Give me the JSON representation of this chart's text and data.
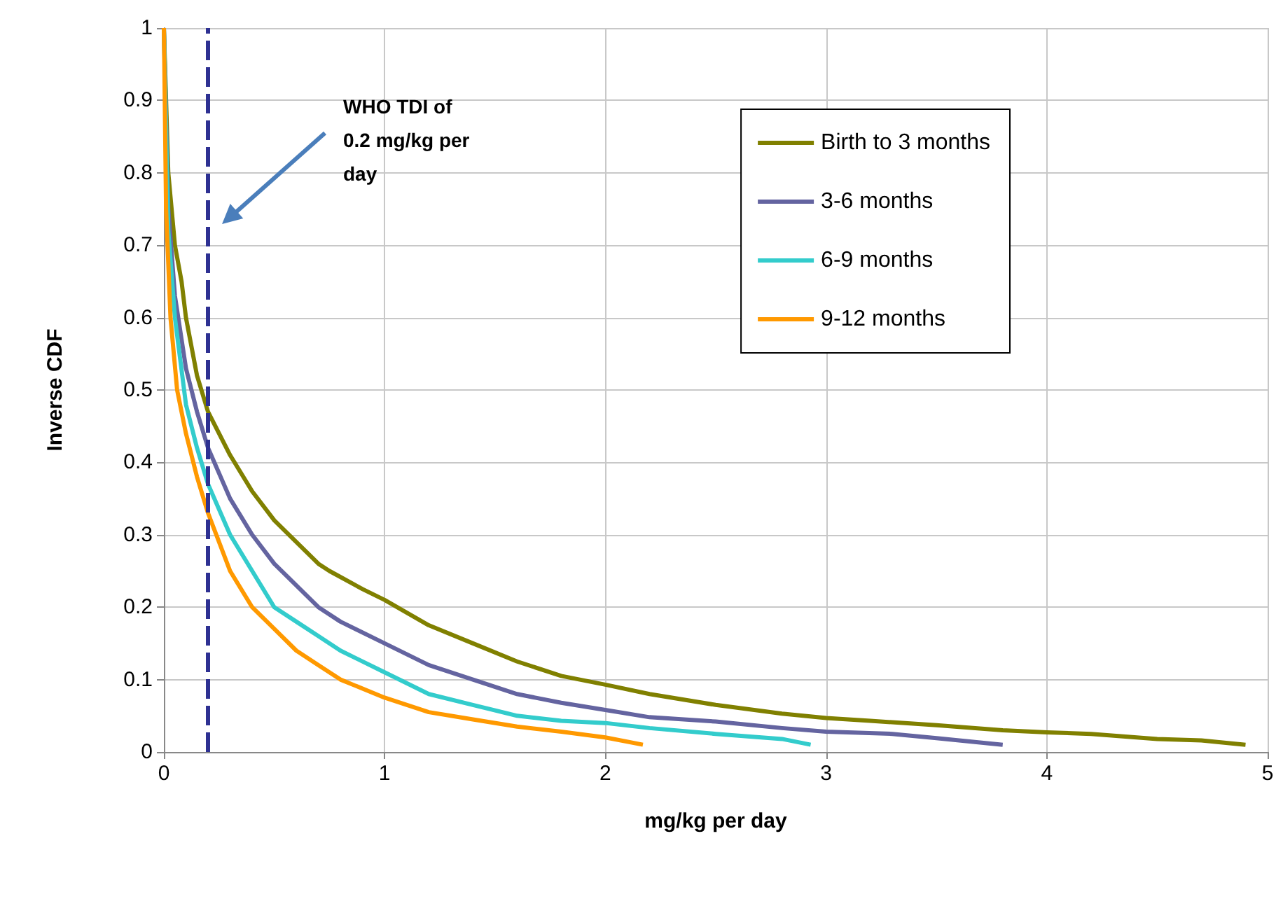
{
  "chart_data": {
    "type": "line",
    "xlabel": "mg/kg per day",
    "ylabel": "Inverse CDF",
    "xlim": [
      0,
      5
    ],
    "xticks": [
      0,
      1,
      2,
      3,
      4,
      5
    ],
    "ylim": [
      0,
      1
    ],
    "yticks": [
      0,
      0.1,
      0.2,
      0.3,
      0.4,
      0.5,
      0.6,
      0.7,
      0.8,
      0.9,
      1
    ],
    "grid": true,
    "legend": "top right",
    "marker": "none",
    "line_style": "solid",
    "series": [
      {
        "name": "Birth to 3 months",
        "color": "#808000",
        "x": [
          0,
          0.02,
          0.05,
          0.08,
          0.1,
          0.15,
          0.2,
          0.3,
          0.4,
          0.5,
          0.6,
          0.7,
          0.75,
          0.9,
          1.0,
          1.2,
          1.4,
          1.6,
          1.8,
          2.0,
          2.2,
          2.5,
          2.8,
          3.0,
          3.2,
          3.5,
          3.8,
          4.0,
          4.2,
          4.5,
          4.7,
          4.9
        ],
        "values": [
          1,
          0.8,
          0.7,
          0.65,
          0.6,
          0.52,
          0.47,
          0.41,
          0.36,
          0.32,
          0.29,
          0.26,
          0.25,
          0.225,
          0.21,
          0.175,
          0.15,
          0.125,
          0.105,
          0.093,
          0.08,
          0.065,
          0.053,
          0.047,
          0.043,
          0.037,
          0.03,
          0.027,
          0.025,
          0.018,
          0.016,
          0.01
        ]
      },
      {
        "name": "3-6 months",
        "color": "#6464a0",
        "x": [
          0,
          0.02,
          0.05,
          0.1,
          0.15,
          0.2,
          0.3,
          0.4,
          0.5,
          0.6,
          0.7,
          0.8,
          1.0,
          1.2,
          1.4,
          1.6,
          1.8,
          2.0,
          2.2,
          2.5,
          2.8,
          3.0,
          3.3,
          3.5,
          3.8
        ],
        "values": [
          1,
          0.75,
          0.63,
          0.53,
          0.47,
          0.42,
          0.35,
          0.3,
          0.26,
          0.23,
          0.2,
          0.18,
          0.15,
          0.12,
          0.1,
          0.08,
          0.068,
          0.058,
          0.048,
          0.042,
          0.033,
          0.028,
          0.025,
          0.019,
          0.01
        ]
      },
      {
        "name": "6-9 months",
        "color": "#33cccc",
        "x": [
          0,
          0.02,
          0.05,
          0.1,
          0.15,
          0.2,
          0.3,
          0.4,
          0.5,
          0.6,
          0.7,
          0.8,
          1.0,
          1.2,
          1.4,
          1.6,
          1.8,
          2.0,
          2.2,
          2.5,
          2.8,
          2.93
        ],
        "values": [
          1,
          0.72,
          0.6,
          0.48,
          0.42,
          0.37,
          0.3,
          0.25,
          0.2,
          0.18,
          0.16,
          0.14,
          0.11,
          0.08,
          0.065,
          0.05,
          0.043,
          0.04,
          0.033,
          0.025,
          0.018,
          0.01
        ]
      },
      {
        "name": "9-12 months",
        "color": "#ff9900",
        "x": [
          0,
          0.01,
          0.03,
          0.06,
          0.1,
          0.15,
          0.2,
          0.3,
          0.4,
          0.5,
          0.6,
          0.7,
          0.8,
          1.0,
          1.2,
          1.4,
          1.6,
          1.8,
          2.0,
          2.17
        ],
        "values": [
          1,
          0.75,
          0.6,
          0.5,
          0.44,
          0.38,
          0.33,
          0.25,
          0.2,
          0.17,
          0.14,
          0.12,
          0.1,
          0.075,
          0.055,
          0.045,
          0.035,
          0.028,
          0.02,
          0.01
        ]
      }
    ],
    "ref_lines": [
      {
        "axis": "x",
        "value": 0.2,
        "color": "#2e3192",
        "line_style": "dashed"
      }
    ],
    "annotations": [
      "WHO TDI of 0.2 mg/kg per day"
    ]
  }
}
